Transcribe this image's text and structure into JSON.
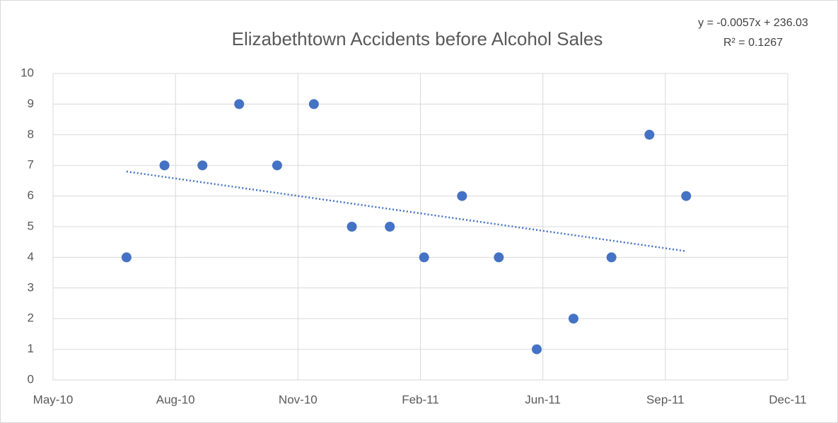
{
  "chart_data": {
    "type": "scatter",
    "title": "Elizabethtown Accidents before Alcohol Sales",
    "trendline_equation": "y = -0.0057x + 236.03",
    "trendline_r2": "R² = 0.1267",
    "x": [
      40360,
      40391,
      40422,
      40452,
      40483,
      40513,
      40544,
      40575,
      40603,
      40634,
      40664,
      40695,
      40725,
      40756,
      40787,
      40817
    ],
    "values": [
      4,
      7,
      7,
      9,
      7,
      9,
      5,
      5,
      4,
      6,
      4,
      1,
      2,
      4,
      8,
      6
    ],
    "color": "#4472c4",
    "trendline": {
      "x": [
        40360,
        40817
      ],
      "values": [
        6.8,
        4.2
      ],
      "color": "#4472c4"
    },
    "xlim": [
      40300,
      40900
    ],
    "xticks": [
      {
        "value": 40300,
        "label": "May-10"
      },
      {
        "value": 40400,
        "label": "Aug-10"
      },
      {
        "value": 40500,
        "label": "Nov-10"
      },
      {
        "value": 40600,
        "label": "Feb-11"
      },
      {
        "value": 40700,
        "label": "Jun-11"
      },
      {
        "value": 40800,
        "label": "Sep-11"
      },
      {
        "value": 40900,
        "label": "Dec-11"
      }
    ],
    "ylim": [
      0,
      10
    ],
    "yticks": [
      0,
      1,
      2,
      3,
      4,
      5,
      6,
      7,
      8,
      9,
      10
    ],
    "grid": true
  }
}
